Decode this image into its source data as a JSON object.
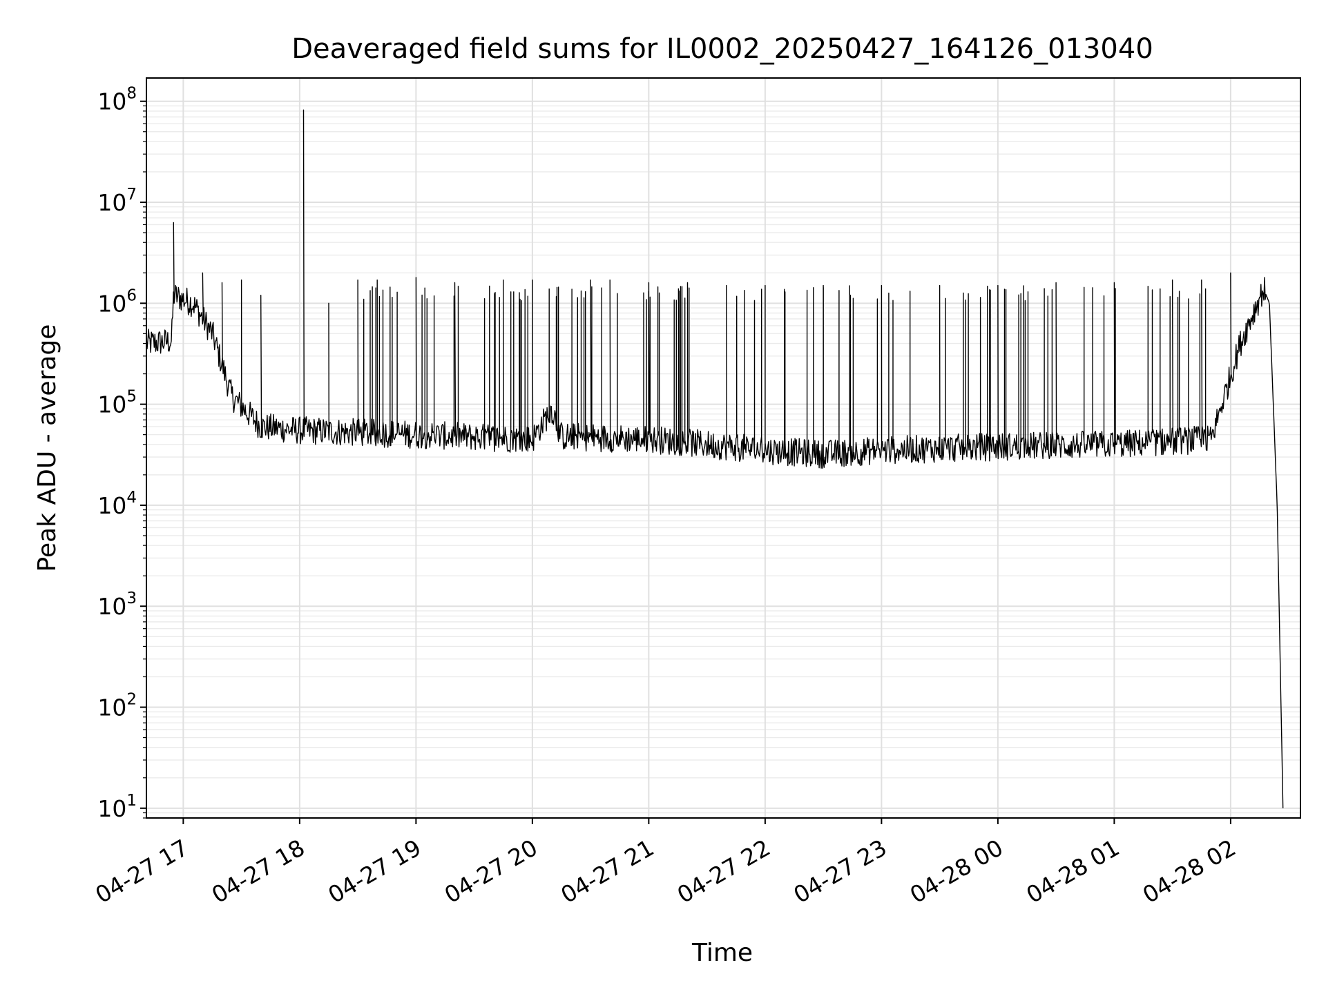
{
  "chart_data": {
    "type": "line",
    "title": "Deaveraged field sums for IL0002_20250427_164126_013040",
    "xlabel": "Time",
    "ylabel": "Peak ADU - average",
    "yscale": "log",
    "grid": true,
    "grid_minor": true,
    "legend": "none",
    "line_color": "#000000",
    "xlim": [
      "2025-04-27 16:41",
      "2025-04-28 02:36"
    ],
    "ylim": [
      8,
      170000000
    ],
    "x_ticks": [
      {
        "value": "2025-04-27 17:00",
        "label": "04-27 17"
      },
      {
        "value": "2025-04-27 18:00",
        "label": "04-27 18"
      },
      {
        "value": "2025-04-27 19:00",
        "label": "04-27 19"
      },
      {
        "value": "2025-04-27 20:00",
        "label": "04-27 20"
      },
      {
        "value": "2025-04-27 21:00",
        "label": "04-27 21"
      },
      {
        "value": "2025-04-27 22:00",
        "label": "04-27 22"
      },
      {
        "value": "2025-04-27 23:00",
        "label": "04-27 23"
      },
      {
        "value": "2025-04-28 00:00",
        "label": "04-28 00"
      },
      {
        "value": "2025-04-28 01:00",
        "label": "04-28 01"
      },
      {
        "value": "2025-04-28 02:00",
        "label": "04-28 02"
      }
    ],
    "y_ticks": [
      {
        "value": 10,
        "base": "10",
        "exp": "1"
      },
      {
        "value": 100,
        "base": "10",
        "exp": "2"
      },
      {
        "value": 1000,
        "base": "10",
        "exp": "3"
      },
      {
        "value": 10000,
        "base": "10",
        "exp": "4"
      },
      {
        "value": 100000,
        "base": "10",
        "exp": "5"
      },
      {
        "value": 1000000,
        "base": "10",
        "exp": "6"
      },
      {
        "value": 10000000,
        "base": "10",
        "exp": "7"
      },
      {
        "value": 100000000,
        "base": "10",
        "exp": "8"
      }
    ],
    "baseline": [
      [
        "2025-04-27 16:41",
        400000
      ],
      [
        "2025-04-27 16:54",
        420000
      ],
      [
        "2025-04-27 16:55",
        1200000
      ],
      [
        "2025-04-27 17:05",
        1000000
      ],
      [
        "2025-04-27 17:15",
        500000
      ],
      [
        "2025-04-27 17:25",
        120000
      ],
      [
        "2025-04-27 17:40",
        60000
      ],
      [
        "2025-04-27 18:00",
        55000
      ],
      [
        "2025-04-27 19:00",
        50000
      ],
      [
        "2025-04-27 20:00",
        45000
      ],
      [
        "2025-04-27 20:10",
        90000
      ],
      [
        "2025-04-27 20:15",
        48000
      ],
      [
        "2025-04-27 21:00",
        45000
      ],
      [
        "2025-04-27 21:30",
        40000
      ],
      [
        "2025-04-27 22:00",
        35000
      ],
      [
        "2025-04-27 22:30",
        32000
      ],
      [
        "2025-04-27 23:00",
        35000
      ],
      [
        "2025-04-28 00:00",
        38000
      ],
      [
        "2025-04-28 01:00",
        40000
      ],
      [
        "2025-04-28 01:50",
        45000
      ],
      [
        "2025-04-28 02:05",
        400000
      ],
      [
        "2025-04-28 02:17",
        1400000
      ],
      [
        "2025-04-28 02:20",
        1000000
      ],
      [
        "2025-04-28 02:24",
        10000
      ],
      [
        "2025-04-28 02:27",
        10
      ]
    ],
    "spikes": [
      [
        "2025-04-27 16:55",
        6300000
      ],
      [
        "2025-04-27 17:10",
        2000000
      ],
      [
        "2025-04-27 17:20",
        1600000
      ],
      [
        "2025-04-27 17:30",
        1700000
      ],
      [
        "2025-04-27 17:40",
        1200000
      ],
      [
        "2025-04-27 18:02",
        82000000
      ],
      [
        "2025-04-27 18:15",
        1000000
      ],
      [
        "2025-04-27 18:30",
        1700000
      ],
      [
        "2025-04-27 18:40",
        1700000
      ],
      [
        "2025-04-27 19:00",
        1800000
      ],
      [
        "2025-04-27 19:20",
        1600000
      ],
      [
        "2025-04-27 19:45",
        1700000
      ],
      [
        "2025-04-27 20:00",
        1700000
      ],
      [
        "2025-04-27 20:30",
        1700000
      ],
      [
        "2025-04-27 20:40",
        1700000
      ],
      [
        "2025-04-27 21:00",
        1600000
      ],
      [
        "2025-04-27 21:20",
        1600000
      ],
      [
        "2025-04-27 21:40",
        1500000
      ],
      [
        "2025-04-27 22:00",
        1500000
      ],
      [
        "2025-04-27 22:30",
        1500000
      ],
      [
        "2025-04-27 23:00",
        1500000
      ],
      [
        "2025-04-27 23:30",
        1500000
      ],
      [
        "2025-04-28 00:00",
        1500000
      ],
      [
        "2025-04-28 00:30",
        1600000
      ],
      [
        "2025-04-28 01:00",
        1600000
      ],
      [
        "2025-04-28 01:30",
        1700000
      ],
      [
        "2025-04-28 01:45",
        1700000
      ],
      [
        "2025-04-28 02:00",
        2000000
      ]
    ]
  }
}
